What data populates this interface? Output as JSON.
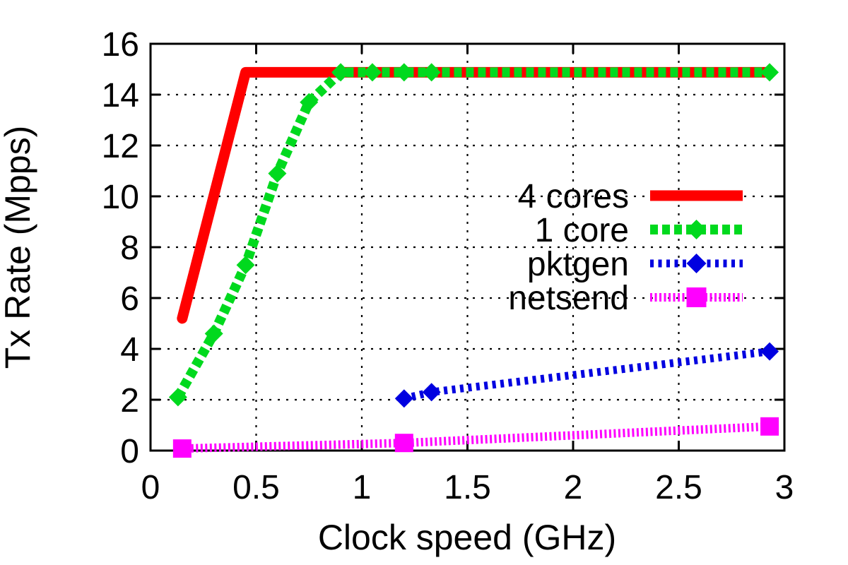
{
  "chart_data": {
    "type": "line",
    "title": "",
    "xlabel": "Clock speed (GHz)",
    "ylabel": "Tx Rate (Mpps)",
    "xlim": [
      0,
      3
    ],
    "ylim": [
      0,
      16
    ],
    "xticks": [
      "0",
      "0.5",
      "1",
      "1.5",
      "2",
      "2.5",
      "3"
    ],
    "xtick_values": [
      0,
      0.5,
      1,
      1.5,
      2,
      2.5,
      3
    ],
    "yticks": [
      "0",
      "2",
      "4",
      "6",
      "8",
      "10",
      "12",
      "14",
      "16"
    ],
    "ytick_values": [
      0,
      2,
      4,
      6,
      8,
      10,
      12,
      14,
      16
    ],
    "grid": true,
    "grid_style": "dotted",
    "legend_position": "inside-middle-right",
    "line_rate_mpps": 14.88,
    "series": [
      {
        "name": "4 cores",
        "color": "#ff0000",
        "line": "solid",
        "linewidth": 15,
        "marker": "none",
        "points": [
          [
            0.15,
            5.2
          ],
          [
            0.45,
            14.88
          ],
          [
            2.93,
            14.88
          ]
        ]
      },
      {
        "name": "1 core",
        "color": "#00d91e",
        "line": "dashed",
        "linewidth": 14,
        "marker": "diamond",
        "points": [
          [
            0.13,
            2.1
          ],
          [
            0.3,
            4.6
          ],
          [
            0.45,
            7.3
          ],
          [
            0.6,
            10.9
          ],
          [
            0.75,
            13.7
          ],
          [
            0.9,
            14.88
          ],
          [
            1.05,
            14.88
          ],
          [
            1.2,
            14.88
          ],
          [
            1.33,
            14.88
          ],
          [
            2.93,
            14.88
          ]
        ]
      },
      {
        "name": "pktgen",
        "color": "#0000e0",
        "line": "dashed-fine",
        "linewidth": 11,
        "marker": "diamond",
        "points": [
          [
            1.2,
            2.05
          ],
          [
            1.33,
            2.3
          ],
          [
            2.93,
            3.9
          ]
        ]
      },
      {
        "name": "netsend",
        "color": "#ff00ff",
        "line": "dashed-dense",
        "linewidth": 12,
        "marker": "square",
        "points": [
          [
            0.15,
            0.08
          ],
          [
            1.2,
            0.3
          ],
          [
            2.93,
            0.95
          ]
        ]
      }
    ]
  }
}
